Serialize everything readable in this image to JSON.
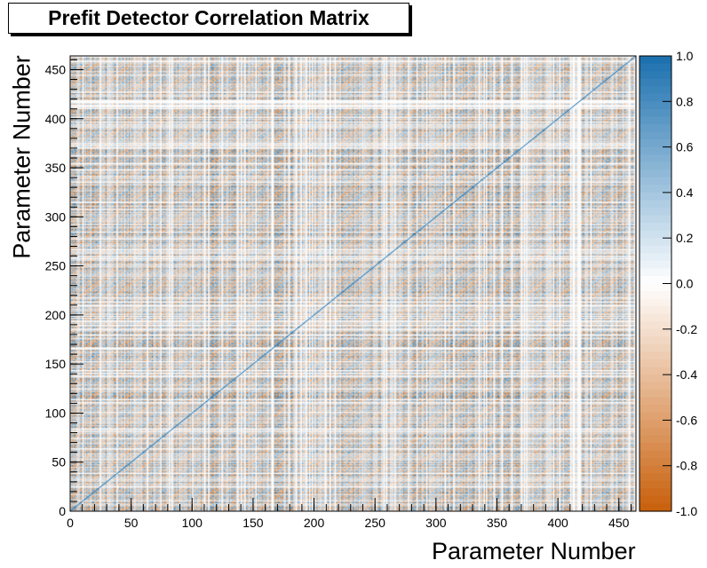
{
  "chart_data": {
    "type": "heatmap",
    "title": "Prefit Detector Correlation Matrix",
    "xlabel": "Parameter Number",
    "ylabel": "Parameter Number",
    "n_params": 464,
    "xlim": [
      0,
      464
    ],
    "ylim": [
      0,
      464
    ],
    "x_ticks": [
      0,
      50,
      100,
      150,
      200,
      250,
      300,
      350,
      400,
      450
    ],
    "y_ticks": [
      0,
      50,
      100,
      150,
      200,
      250,
      300,
      350,
      400,
      450
    ],
    "zlim": [
      -1.0,
      1.0
    ],
    "colorbar_ticks": [
      "1.0",
      "0.8",
      "0.6",
      "0.4",
      "0.2",
      "0.0",
      "-0.2",
      "-0.4",
      "-0.6",
      "-0.8",
      "-1.0"
    ],
    "colorscale": {
      "positive": "#1a6fae",
      "zero": "#ffffff",
      "negative": "#c85f0a"
    },
    "diagonal_value": 1.0,
    "description_of_structure": "symmetric correlation matrix with banded block structure"
  }
}
